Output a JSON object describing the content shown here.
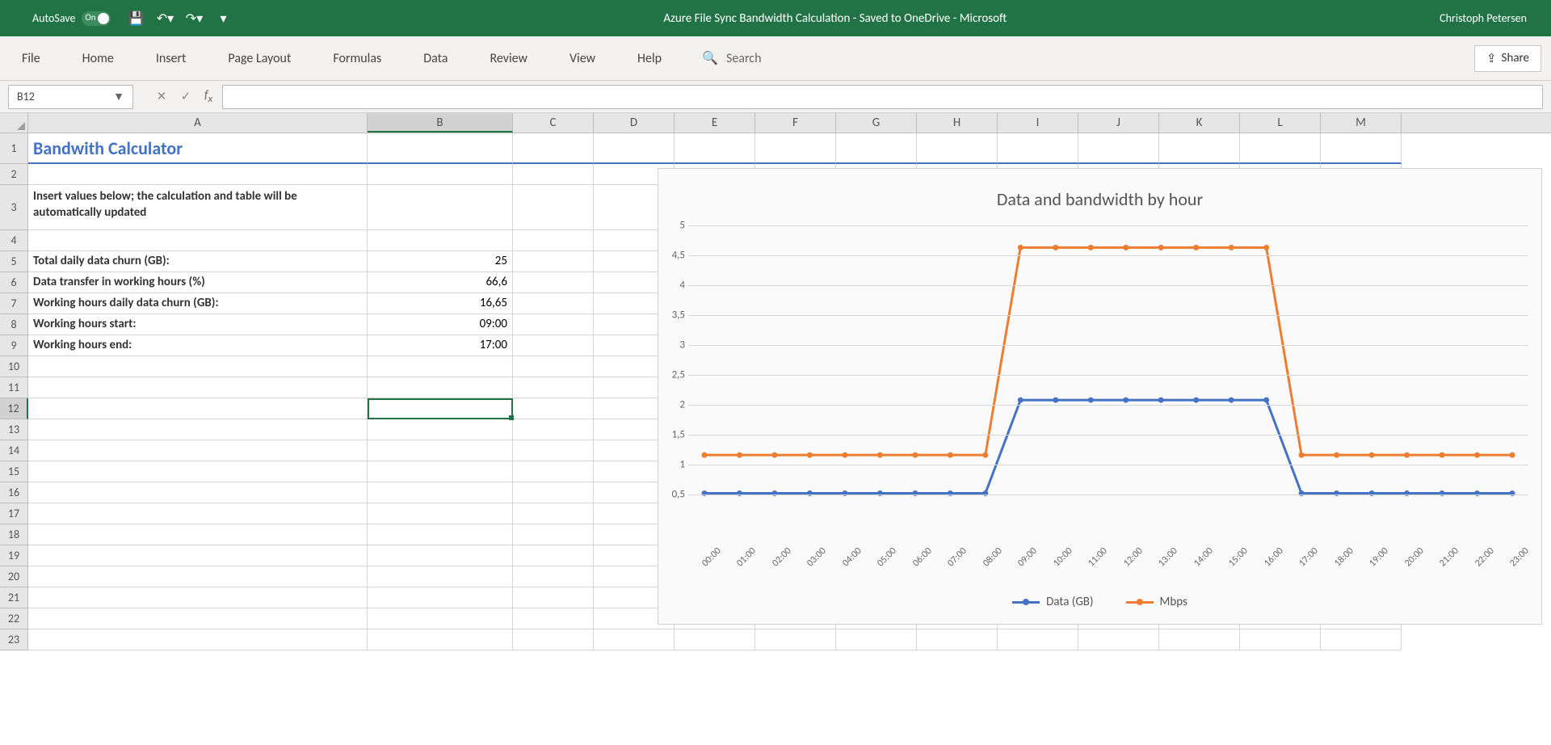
{
  "titlebar": {
    "autosave_label": "AutoSave",
    "autosave_state": "On",
    "doc_title": "Azure File Sync Bandwidth Calculation  -  Saved to OneDrive - Microsoft  ",
    "user": "Christoph Petersen"
  },
  "ribbon": {
    "tabs": [
      "File",
      "Home",
      "Insert",
      "Page Layout",
      "Formulas",
      "Data",
      "Review",
      "View",
      "Help"
    ],
    "search_placeholder": "Search",
    "share": "Share"
  },
  "fbar": {
    "namebox": "B12",
    "formula": ""
  },
  "columns": {
    "labels": [
      "A",
      "B",
      "C",
      "D",
      "E",
      "F",
      "G",
      "H",
      "I",
      "J",
      "K",
      "L",
      "M"
    ],
    "widths": [
      420,
      180,
      100,
      100,
      100,
      100,
      100,
      100,
      100,
      100,
      100,
      100,
      100
    ]
  },
  "rows": {
    "count": 23,
    "selected": 12
  },
  "cells": {
    "A1": "Bandwith Calculator",
    "A3": "Insert values below; the calculation and table will be automatically updated",
    "A5": "Total daily data churn (GB):",
    "B5": "25",
    "A6": "Data transfer in working hours (%)",
    "B6": "66,6",
    "A7": "Working hours daily data churn (GB):",
    "B7": "16,65",
    "A8": "Working hours start:",
    "B8": "09:00",
    "A9": "Working hours end:",
    "B9": "17:00"
  },
  "chart": {
    "type": "line",
    "title": "Data and bandwidth by hour",
    "title_fontsize": 22,
    "background_color": "#fafafa",
    "grid_color": "#d8d8d8",
    "ylim": [
      0,
      5
    ],
    "ytick_step": 0.5,
    "yticks_labels": [
      "0,5",
      "1",
      "1,5",
      "2",
      "2,5",
      "3",
      "3,5",
      "4",
      "4,5",
      "5"
    ],
    "x_categories": [
      "00:00",
      "01:00",
      "02:00",
      "03:00",
      "04:00",
      "05:00",
      "06:00",
      "07:00",
      "08:00",
      "09:00",
      "10:00",
      "11:00",
      "12:00",
      "13:00",
      "14:00",
      "15:00",
      "16:00",
      "17:00",
      "18:00",
      "19:00",
      "20:00",
      "21:00",
      "22:00",
      "23:00"
    ],
    "series": [
      {
        "name": "Data (GB)",
        "color": "#4472c4",
        "line_width": 3,
        "marker": "circle",
        "marker_size": 7,
        "values": [
          0.52,
          0.52,
          0.52,
          0.52,
          0.52,
          0.52,
          0.52,
          0.52,
          0.52,
          2.08,
          2.08,
          2.08,
          2.08,
          2.08,
          2.08,
          2.08,
          2.08,
          0.52,
          0.52,
          0.52,
          0.52,
          0.52,
          0.52,
          0.52
        ]
      },
      {
        "name": "Mbps",
        "color": "#ed7d31",
        "line_width": 3,
        "marker": "circle",
        "marker_size": 7,
        "values": [
          1.16,
          1.16,
          1.16,
          1.16,
          1.16,
          1.16,
          1.16,
          1.16,
          1.16,
          4.63,
          4.63,
          4.63,
          4.63,
          4.63,
          4.63,
          4.63,
          4.63,
          1.16,
          1.16,
          1.16,
          1.16,
          1.16,
          1.16,
          1.16
        ]
      }
    ],
    "legend_position": "bottom"
  },
  "colors": {
    "brand": "#217346",
    "accent_blue": "#4472c4",
    "accent_orange": "#ed7d31"
  }
}
